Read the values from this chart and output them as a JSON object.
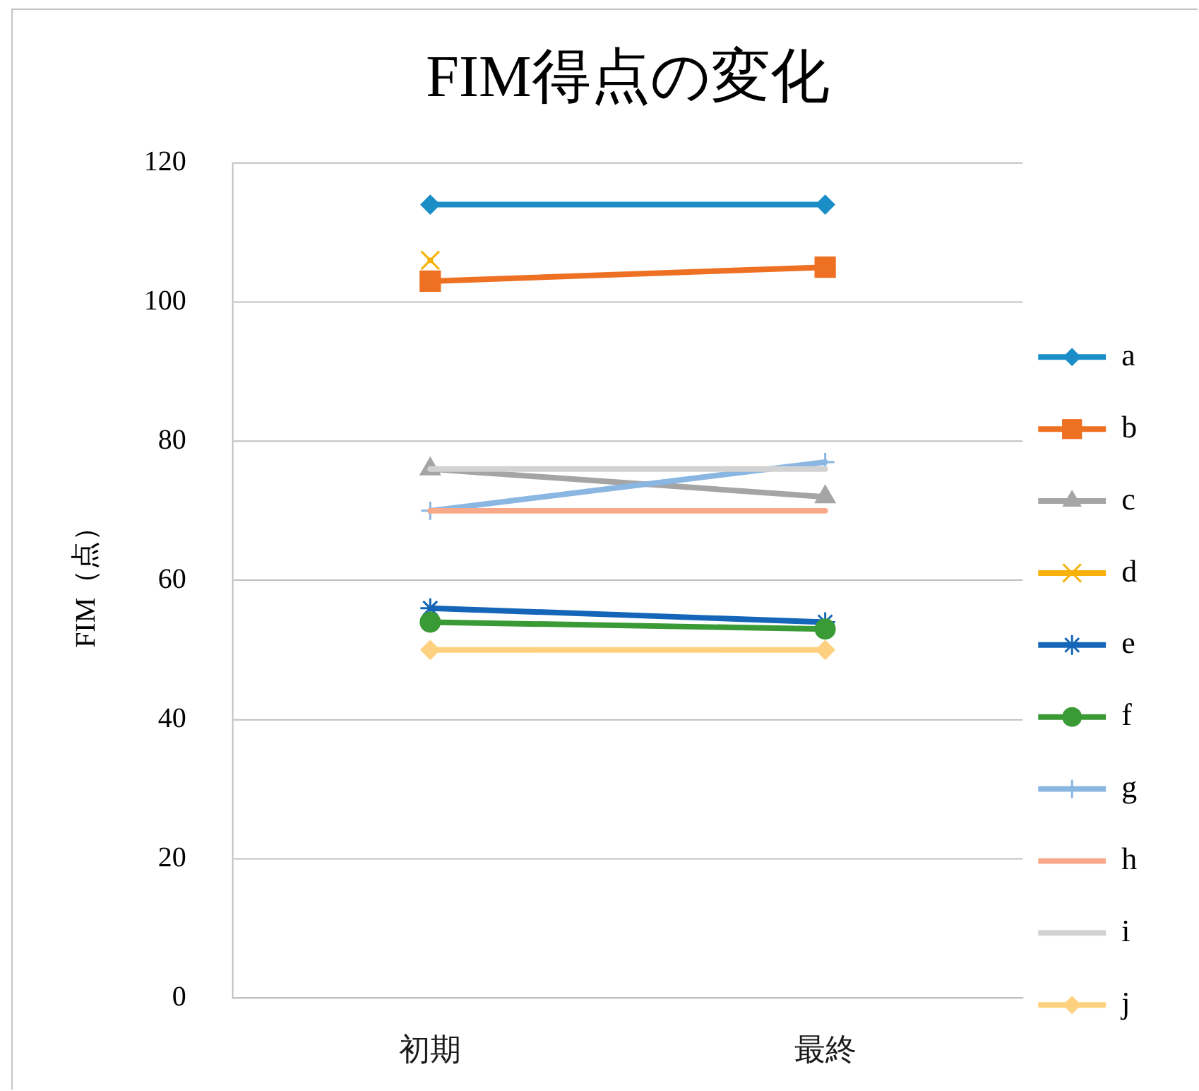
{
  "chart_data": {
    "type": "line",
    "title": "FIM得点の変化",
    "ylabel": "FIM（点）",
    "categories": [
      "初期",
      "最終"
    ],
    "series": [
      {
        "name": "a",
        "color": "#1b8ec8",
        "values": [
          114,
          114
        ],
        "marker": "diamond"
      },
      {
        "name": "b",
        "color": "#ee7023",
        "values": [
          103,
          105
        ],
        "marker": "square"
      },
      {
        "name": "c",
        "color": "#a5a5a5",
        "values": [
          76,
          72
        ],
        "marker": "triangle"
      },
      {
        "name": "d",
        "color": "#f7b10a",
        "values": [
          106,
          null
        ],
        "marker": "x"
      },
      {
        "name": "e",
        "color": "#1565b8",
        "values": [
          56,
          54
        ],
        "marker": "cross"
      },
      {
        "name": "f",
        "color": "#3a9a35",
        "values": [
          54,
          53
        ],
        "marker": "circle"
      },
      {
        "name": "g",
        "color": "#8ab6e2",
        "values": [
          70,
          77
        ],
        "marker": "plus"
      },
      {
        "name": "h",
        "color": "#f8a98a",
        "values": [
          70,
          70
        ],
        "marker": "none"
      },
      {
        "name": "i",
        "color": "#d2d2d2",
        "values": [
          76,
          76
        ],
        "marker": "none"
      },
      {
        "name": "j",
        "color": "#fed180",
        "values": [
          50,
          50
        ],
        "marker": "diamond"
      }
    ],
    "ylim": [
      0,
      120
    ],
    "yticks": [
      0,
      20,
      40,
      60,
      80,
      100,
      120
    ],
    "grid": "y",
    "legend": "right",
    "line_style": "solid"
  }
}
